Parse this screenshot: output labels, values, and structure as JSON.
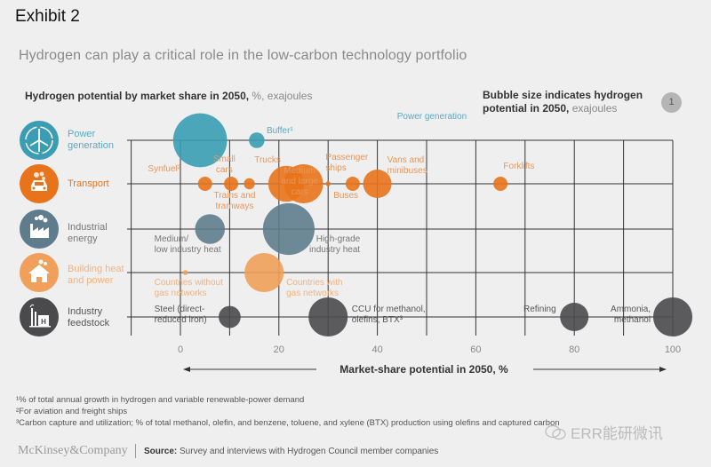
{
  "header": {
    "exhibit": "Exhibit 2",
    "subtitle": "Hydrogen can play a critical role in the low-carbon technology portfolio",
    "chart_heading_bold": "Hydrogen potential by market share in 2050,",
    "chart_heading_light": " %, exajoules",
    "legend_bold": "Bubble size indicates hydrogen",
    "legend_bold2": "potential in 2050,",
    "legend_light": " exajoules",
    "legend_bubble_value": "1"
  },
  "colors": {
    "power": "#3a9db3",
    "transport": "#e8731a",
    "industrial": "#5e7c8c",
    "building": "#f0a05a",
    "feedstock": "#4a4a4c",
    "power_label": "#5aaac0",
    "transport_label": "#e8965a",
    "industrial_label": "#777777",
    "building_label": "#f2b27a",
    "feedstock_label": "#555555"
  },
  "rows": [
    {
      "key": "power",
      "label_l1": "Power",
      "label_l2": "generation",
      "icon": "wind-turbine-icon"
    },
    {
      "key": "transport",
      "label_l1": "Transport",
      "label_l2": "",
      "icon": "car-icon"
    },
    {
      "key": "industrial",
      "label_l1": "Industrial",
      "label_l2": "energy",
      "icon": "factory-icon"
    },
    {
      "key": "building",
      "label_l1": "Building heat",
      "label_l2": "and power",
      "icon": "house-icon"
    },
    {
      "key": "feedstock",
      "label_l1": "Industry",
      "label_l2": "feedstock",
      "icon": "industrial-plant-icon"
    }
  ],
  "chart_data": {
    "type": "scatter",
    "title": "Hydrogen potential by market share in 2050, %, exajoules",
    "xlabel": "Market-share potential in 2050, %",
    "ylabel": "",
    "xlim": [
      -10,
      100
    ],
    "xticks": [
      0,
      20,
      40,
      60,
      80,
      100
    ],
    "grid": true,
    "legend": "top-right",
    "size_legend_reference": 1,
    "categories": [
      "Power generation",
      "Transport",
      "Industrial energy",
      "Building heat and power",
      "Industry feedstock"
    ],
    "points": [
      {
        "row": 0,
        "label": "Power generation",
        "x": 4,
        "size": 3.6,
        "color_key": "power"
      },
      {
        "row": 0,
        "label": "Buffer¹",
        "x": 15.5,
        "size": 0.3,
        "color_key": "power"
      },
      {
        "row": 1,
        "label": "Synfuel²",
        "x": 5,
        "size": 0.25,
        "color_key": "transport"
      },
      {
        "row": 1,
        "label": "Small cars",
        "x": 10.3,
        "size": 0.25,
        "color_key": "transport"
      },
      {
        "row": 1,
        "label": "Trains and tramways",
        "x": 14,
        "size": 0.15,
        "color_key": "transport"
      },
      {
        "row": 1,
        "label": "Trucks",
        "x": 21.5,
        "size": 1.6,
        "color_key": "transport"
      },
      {
        "row": 1,
        "label": "Medium and large cars",
        "x": 25,
        "size": 1.9,
        "color_key": "transport"
      },
      {
        "row": 1,
        "label": "Passenger ships",
        "x": 30,
        "size": 0.03,
        "color_key": "transport"
      },
      {
        "row": 1,
        "label": "Buses",
        "x": 35,
        "size": 0.25,
        "color_key": "transport"
      },
      {
        "row": 1,
        "label": "Vans and minibuses",
        "x": 40,
        "size": 1.0,
        "color_key": "transport"
      },
      {
        "row": 1,
        "label": "Forklifts",
        "x": 65,
        "size": 0.25,
        "color_key": "transport"
      },
      {
        "row": 2,
        "label": "Medium/ low industry heat",
        "x": 6,
        "size": 1.1,
        "color_key": "industrial"
      },
      {
        "row": 2,
        "label": "High-grade industry heat",
        "x": 22,
        "size": 3.3,
        "color_key": "industrial"
      },
      {
        "row": 3,
        "label": "Countries without gas networks",
        "x": 1,
        "size": 0.03,
        "color_key": "building"
      },
      {
        "row": 3,
        "label": "Countries with gas networks",
        "x": 17,
        "size": 1.9,
        "color_key": "building"
      },
      {
        "row": 4,
        "label": "Steel (direct-reduced iron)",
        "x": 10,
        "size": 0.6,
        "color_key": "feedstock"
      },
      {
        "row": 4,
        "label": "CCU for methanol, olefins, BTX³",
        "x": 30,
        "size": 1.9,
        "color_key": "feedstock"
      },
      {
        "row": 4,
        "label": "Refining",
        "x": 80,
        "size": 1.0,
        "color_key": "feedstock"
      },
      {
        "row": 4,
        "label": "Ammonia, methanol",
        "x": 100,
        "size": 1.9,
        "color_key": "feedstock"
      }
    ]
  },
  "bubble_labels": [
    {
      "lines": [
        "Power generation"
      ],
      "color_key": "power_label",
      "anchor": "start",
      "x": 44,
      "row": 0,
      "dy": -24
    },
    {
      "lines": [
        "Buffer¹"
      ],
      "color_key": "power_label",
      "anchor": "start",
      "x": 17.5,
      "row": 0,
      "dy": -8
    },
    {
      "lines": [
        "Synfuel²"
      ],
      "color_key": "transport_label",
      "anchor": "start",
      "x": -6.6,
      "row": 1,
      "dy": -14
    },
    {
      "lines": [
        "Small",
        "cars"
      ],
      "color_key": "transport_label",
      "anchor": "middle",
      "x": 8.9,
      "row": 1,
      "dy": -25
    },
    {
      "lines": [
        "Trucks"
      ],
      "color_key": "transport_label",
      "anchor": "middle",
      "x": 17.7,
      "row": 1,
      "dy": -24
    },
    {
      "lines": [
        "Medium",
        "and large",
        "cars"
      ],
      "color_key": "transport_label",
      "anchor": "middle",
      "x": 24.2,
      "row": 1,
      "dy": -12
    },
    {
      "lines": [
        "Passenger",
        "ships"
      ],
      "color_key": "transport_label",
      "anchor": "start",
      "x": 29.5,
      "row": 1,
      "dy": -27
    },
    {
      "lines": [
        "Buses"
      ],
      "color_key": "transport_label",
      "anchor": "middle",
      "x": 33.6,
      "row": 1,
      "dy": 16
    },
    {
      "lines": [
        "Vans and",
        "minibuses"
      ],
      "color_key": "transport_label",
      "anchor": "start",
      "x": 42,
      "row": 1,
      "dy": -24
    },
    {
      "lines": [
        "Forklifts"
      ],
      "color_key": "transport_label",
      "anchor": "start",
      "x": 65.6,
      "row": 1,
      "dy": -17
    },
    {
      "lines": [
        "Trains and",
        "tramways"
      ],
      "color_key": "transport_label",
      "anchor": "middle",
      "x": 11,
      "row": 1,
      "dy": 16
    },
    {
      "lines": [
        "Medium/",
        "low industry heat"
      ],
      "color_key": "industrial_label",
      "anchor": "start",
      "x": -5.3,
      "row": 2,
      "dy": 14
    },
    {
      "lines": [
        "High-grade",
        "industry heat"
      ],
      "color_key": "industrial_label",
      "anchor": "end",
      "x": 36.5,
      "row": 2,
      "dy": 14
    },
    {
      "lines": [
        "Countries without",
        "gas networks"
      ],
      "color_key": "building_label",
      "anchor": "start",
      "x": -5.3,
      "row": 3,
      "dy": 14
    },
    {
      "lines": [
        "Countries with",
        "gas networks"
      ],
      "color_key": "building_label",
      "anchor": "start",
      "x": 21.5,
      "row": 3,
      "dy": 14
    },
    {
      "lines": [
        "Steel (direct-",
        "reduced iron)"
      ],
      "color_key": "feedstock_label",
      "anchor": "start",
      "x": -5.3,
      "row": 4,
      "dy": -6
    },
    {
      "lines": [
        "CCU for methanol,",
        "olefins, BTX³"
      ],
      "color_key": "feedstock_label",
      "anchor": "start",
      "x": 34.8,
      "row": 4,
      "dy": -6
    },
    {
      "lines": [
        "Refining"
      ],
      "color_key": "feedstock_label",
      "anchor": "end",
      "x": 76.3,
      "row": 4,
      "dy": -6
    },
    {
      "lines": [
        "Ammonia,",
        "methanol"
      ],
      "color_key": "feedstock_label",
      "anchor": "end",
      "x": 95.5,
      "row": 4,
      "dy": -6
    }
  ],
  "footnotes": [
    "¹% of total annual growth in hydrogen and variable renewable-power demand",
    "²For aviation and freight ships",
    "³Carbon capture and utilization; % of total methanol, olefin, and benzene, toluene, and xylene (BTX) production using olefins and captured carbon"
  ],
  "footer": {
    "brand": "McKinsey&Company",
    "source_bold": "Source:",
    "source_text": " Survey and interviews with Hydrogen Council member companies",
    "watermark": "ERR能研微讯"
  }
}
